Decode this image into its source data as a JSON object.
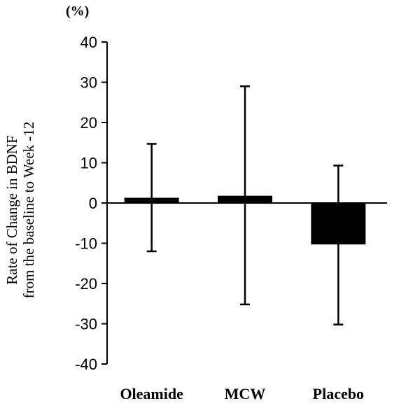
{
  "chart_data": {
    "type": "bar",
    "unit_label": "(%)",
    "ylabel_line1": "Rate of Change in BDNF",
    "ylabel_line2": "from the baseline to Week -12",
    "xlabel": "",
    "categories": [
      "Oleamide",
      "MCW",
      "Placebo"
    ],
    "series": [
      {
        "values": [
          1.3,
          1.8,
          -10.3
        ],
        "error_upper": [
          14.7,
          29.0,
          9.3
        ],
        "error_lower": [
          -12.0,
          -25.2,
          -30.2
        ]
      }
    ],
    "ylim": [
      -40,
      40
    ],
    "yticks": [
      40,
      30,
      20,
      10,
      0,
      -10,
      -20,
      -30,
      -40
    ],
    "ytick_labels": [
      "40",
      "30",
      "20",
      "10",
      "0",
      "-10",
      "-20",
      "-30",
      "-40"
    ],
    "bar_color": "#000000",
    "grid": false,
    "legend": "none"
  }
}
